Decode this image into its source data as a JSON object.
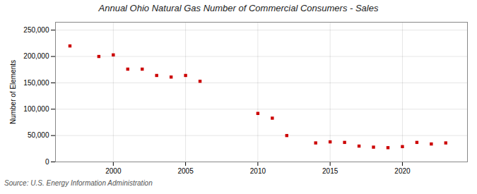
{
  "chart_data": {
    "type": "scatter",
    "title": "Annual Ohio Natural Gas Number of Commercial Consumers - Sales",
    "ylabel": "Number of Elements",
    "source": "Source: U.S. Energy Information Administration",
    "x": [
      1997,
      1999,
      2000,
      2001,
      2002,
      2003,
      2004,
      2005,
      2006,
      2010,
      2011,
      2012,
      2014,
      2015,
      2016,
      2017,
      2018,
      2019,
      2020,
      2021,
      2022,
      2023
    ],
    "values": [
      220000,
      200000,
      203000,
      176000,
      176000,
      164000,
      161000,
      164000,
      153000,
      92000,
      83000,
      50000,
      36000,
      38000,
      37000,
      30000,
      28000,
      27000,
      29000,
      37000,
      34000,
      36000
    ],
    "color": "#cc0000",
    "marker": "square",
    "xlim": [
      1996,
      2024.5
    ],
    "xticks": [
      2000,
      2005,
      2010,
      2015,
      2020
    ],
    "ylim": [
      0,
      265000
    ],
    "yticks": [
      0,
      {
        "value": 50000,
        "label": "50,000"
      },
      {
        "value": 100000,
        "label": "100,000"
      },
      {
        "value": 150000,
        "label": "150,000"
      },
      {
        "value": 200000,
        "label": "200,000"
      },
      {
        "value": 250000,
        "label": "250,000"
      }
    ],
    "grid": true
  }
}
